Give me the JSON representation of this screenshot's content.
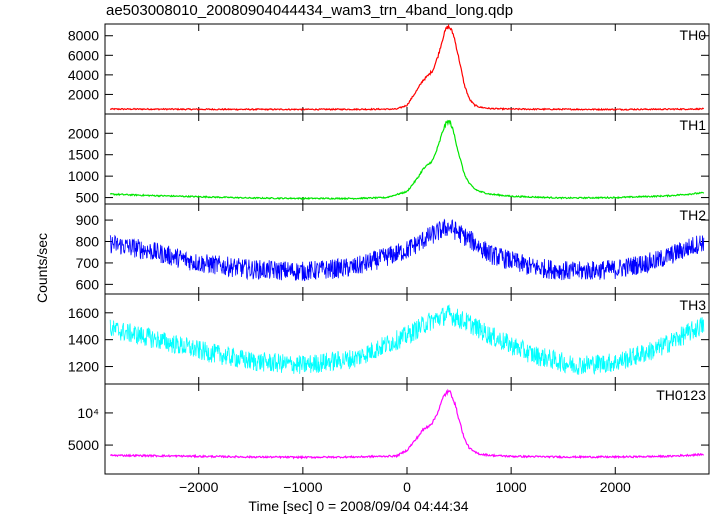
{
  "title": "ae503008010_20080904044434_wam3_trn_4band_long.qdp",
  "xlabel": "Time [sec] 0 = 2008/09/04 04:44:34",
  "ylabel": "Counts/sec",
  "chart_data": [
    {
      "type": "line",
      "name": "TH0",
      "color": "#ff0000",
      "xlim": [
        -2900,
        2900
      ],
      "ylim": [
        0,
        9200
      ],
      "yticks": [
        2000,
        4000,
        6000,
        8000
      ],
      "ytick_labels": [
        "2000",
        "4000",
        "6000",
        "8000"
      ],
      "xticks": [
        -2000,
        -1000,
        0,
        1000,
        2000
      ],
      "x": [
        -2850,
        -2500,
        -2000,
        -1500,
        -1000,
        -500,
        -100,
        0,
        100,
        150,
        200,
        250,
        300,
        350,
        380,
        400,
        420,
        450,
        500,
        550,
        600,
        650,
        700,
        800,
        1000,
        1500,
        2000,
        2500,
        2850
      ],
      "y": [
        500,
        500,
        480,
        470,
        470,
        480,
        500,
        900,
        2500,
        3400,
        3900,
        4500,
        6000,
        8000,
        8800,
        8900,
        8700,
        8000,
        5600,
        3000,
        1500,
        900,
        700,
        550,
        500,
        480,
        470,
        490,
        520
      ]
    },
    {
      "type": "line",
      "name": "TH1",
      "color": "#00e600",
      "xlim": [
        -2900,
        2900
      ],
      "ylim": [
        350,
        2450
      ],
      "yticks": [
        500,
        1000,
        1500,
        2000
      ],
      "ytick_labels": [
        "500",
        "1000",
        "1500",
        "2000"
      ],
      "xticks": [
        -2000,
        -1000,
        0,
        1000,
        2000
      ],
      "x": [
        -2850,
        -2500,
        -2000,
        -1500,
        -1000,
        -500,
        -200,
        0,
        100,
        150,
        200,
        250,
        300,
        350,
        380,
        400,
        420,
        450,
        500,
        550,
        600,
        650,
        700,
        800,
        1000,
        1500,
        2000,
        2500,
        2850
      ],
      "y": [
        580,
        550,
        520,
        490,
        480,
        480,
        500,
        640,
        950,
        1150,
        1260,
        1380,
        1700,
        2100,
        2250,
        2280,
        2230,
        2000,
        1500,
        1050,
        820,
        700,
        640,
        580,
        530,
        490,
        500,
        540,
        610
      ]
    },
    {
      "type": "line",
      "name": "TH2",
      "color": "#0000ff",
      "xlim": [
        -2900,
        2900
      ],
      "ylim": [
        555,
        975
      ],
      "yticks": [
        600,
        700,
        800,
        900
      ],
      "ytick_labels": [
        "600",
        "700",
        "800",
        "900"
      ],
      "xticks": [
        -2000,
        -1000,
        0,
        1000,
        2000
      ],
      "x": [
        -2850,
        -2500,
        -2000,
        -1500,
        -1000,
        -500,
        0,
        200,
        400,
        600,
        800,
        1200,
        1600,
        2000,
        2400,
        2850
      ],
      "y": [
        790,
        760,
        700,
        670,
        660,
        680,
        760,
        820,
        870,
        810,
        740,
        680,
        660,
        670,
        710,
        800
      ]
    },
    {
      "type": "line",
      "name": "TH3",
      "color": "#00ffff",
      "xlim": [
        -2900,
        2900
      ],
      "ylim": [
        1070,
        1740
      ],
      "yticks": [
        1200,
        1400,
        1600
      ],
      "ytick_labels": [
        "1200",
        "1400",
        "1600"
      ],
      "xticks": [
        -2000,
        -1000,
        0,
        1000,
        2000
      ],
      "x": [
        -2850,
        -2500,
        -2000,
        -1500,
        -1000,
        -500,
        0,
        200,
        400,
        600,
        800,
        1200,
        1600,
        2000,
        2400,
        2850
      ],
      "y": [
        1480,
        1420,
        1320,
        1240,
        1210,
        1260,
        1430,
        1530,
        1590,
        1520,
        1430,
        1290,
        1210,
        1230,
        1330,
        1510
      ]
    },
    {
      "type": "line",
      "name": "TH0123",
      "color": "#ff00ff",
      "xlim": [
        -2900,
        2900
      ],
      "ylim": [
        500,
        14500
      ],
      "yticks": [
        5000,
        10000
      ],
      "ytick_labels": [
        "5000",
        "10⁴"
      ],
      "xticks": [
        -2000,
        -1000,
        0,
        1000,
        2000
      ],
      "xtick_labels": [
        "−2000",
        "−1000",
        "0",
        "1000",
        "2000"
      ],
      "x": [
        -2850,
        -2500,
        -2000,
        -1500,
        -1000,
        -500,
        -100,
        0,
        100,
        150,
        200,
        250,
        300,
        350,
        380,
        400,
        420,
        450,
        500,
        550,
        600,
        650,
        700,
        800,
        1000,
        1500,
        2000,
        2500,
        2850
      ],
      "y": [
        3400,
        3350,
        3250,
        3150,
        3100,
        3150,
        3300,
        4200,
        6200,
        7300,
        7900,
        8600,
        10300,
        12500,
        13200,
        13300,
        13100,
        12000,
        9000,
        6000,
        4500,
        3900,
        3600,
        3400,
        3250,
        3150,
        3150,
        3250,
        3550
      ]
    }
  ]
}
